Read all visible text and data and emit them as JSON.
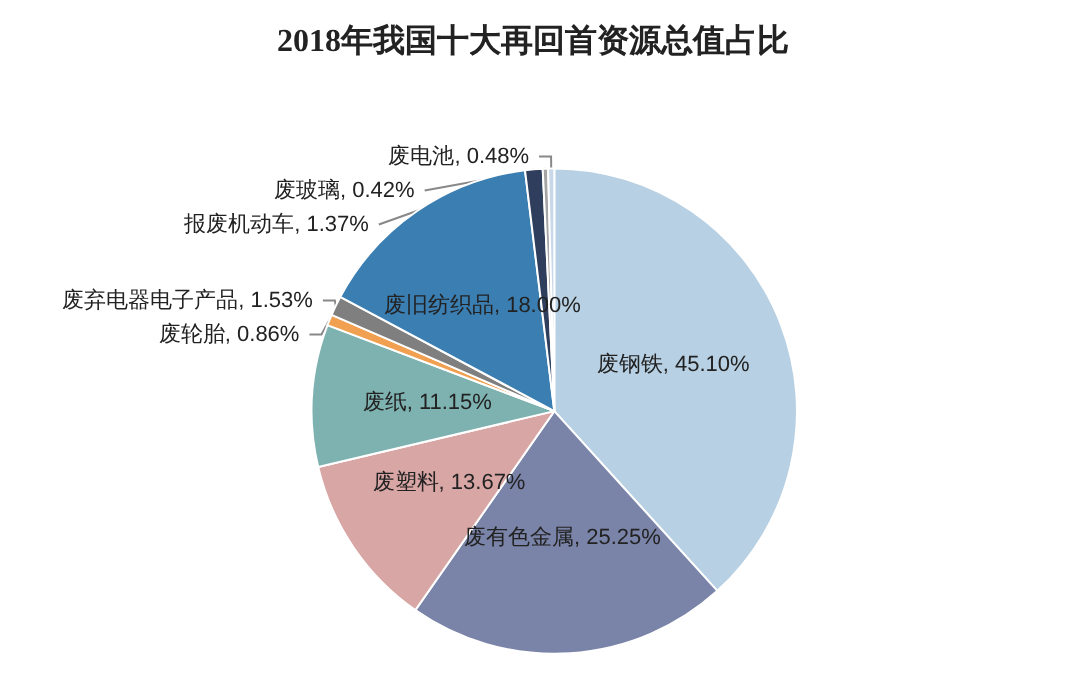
{
  "chart_data": {
    "type": "pie",
    "title": "2018年我国十大再回首资源总值占比",
    "categories": [
      "废钢铁",
      "废有色金属",
      "废塑料",
      "废纸",
      "废轮胎",
      "废弃电器电子产品",
      "废旧纺织品",
      "报废机动车",
      "废玻璃",
      "废电池"
    ],
    "value_labels": [
      "45.10%",
      "25.25%",
      "13.67%",
      "11.15%",
      "0.86%",
      "1.53%",
      "18.00%",
      "1.37%",
      "0.42%",
      "0.48%"
    ],
    "values": [
      45.1,
      25.25,
      13.67,
      11.15,
      0.86,
      1.53,
      18.0,
      1.37,
      0.42,
      0.48
    ],
    "colors": [
      "#b7d0e3",
      "#7a83a8",
      "#d8a6a4",
      "#7eb2b0",
      "#f0a050",
      "#7f7f7f",
      "#3b7eb2",
      "#2e3e5c",
      "#a5a5a5",
      "#c9d8e8"
    ],
    "legend": false
  }
}
